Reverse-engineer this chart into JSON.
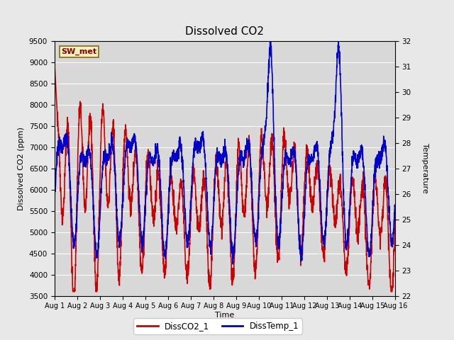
{
  "title": "Dissolved CO2",
  "xlabel": "Time",
  "ylabel_left": "Dissolved CO2 (ppm)",
  "ylabel_right": "Temperature",
  "annotation": "SW_met",
  "ylim_left": [
    3500,
    9500
  ],
  "ylim_right": [
    22.0,
    32.0
  ],
  "yticks_left": [
    3500,
    4000,
    4500,
    5000,
    5500,
    6000,
    6500,
    7000,
    7500,
    8000,
    8500,
    9000,
    9500
  ],
  "yticks_right": [
    22.0,
    23.0,
    24.0,
    25.0,
    26.0,
    27.0,
    28.0,
    29.0,
    30.0,
    31.0,
    32.0
  ],
  "xtick_labels": [
    "Aug 1",
    "Aug 2",
    "Aug 3",
    "Aug 4",
    "Aug 5",
    "Aug 6",
    "Aug 7",
    "Aug 8",
    "Aug 9",
    "Aug 10",
    "Aug 11",
    "Aug 12",
    "Aug 13",
    "Aug 14",
    "Aug 15",
    "Aug 16"
  ],
  "color_co2": "#cc0000",
  "color_temp": "#0000cc",
  "legend_co2": "DissCO2_1",
  "legend_temp": "DissTemp_1",
  "background_color": "#e8e8e8",
  "plot_bg_color": "#d8d8d8",
  "linewidth": 1.2,
  "num_days": 15,
  "points_per_day": 144
}
